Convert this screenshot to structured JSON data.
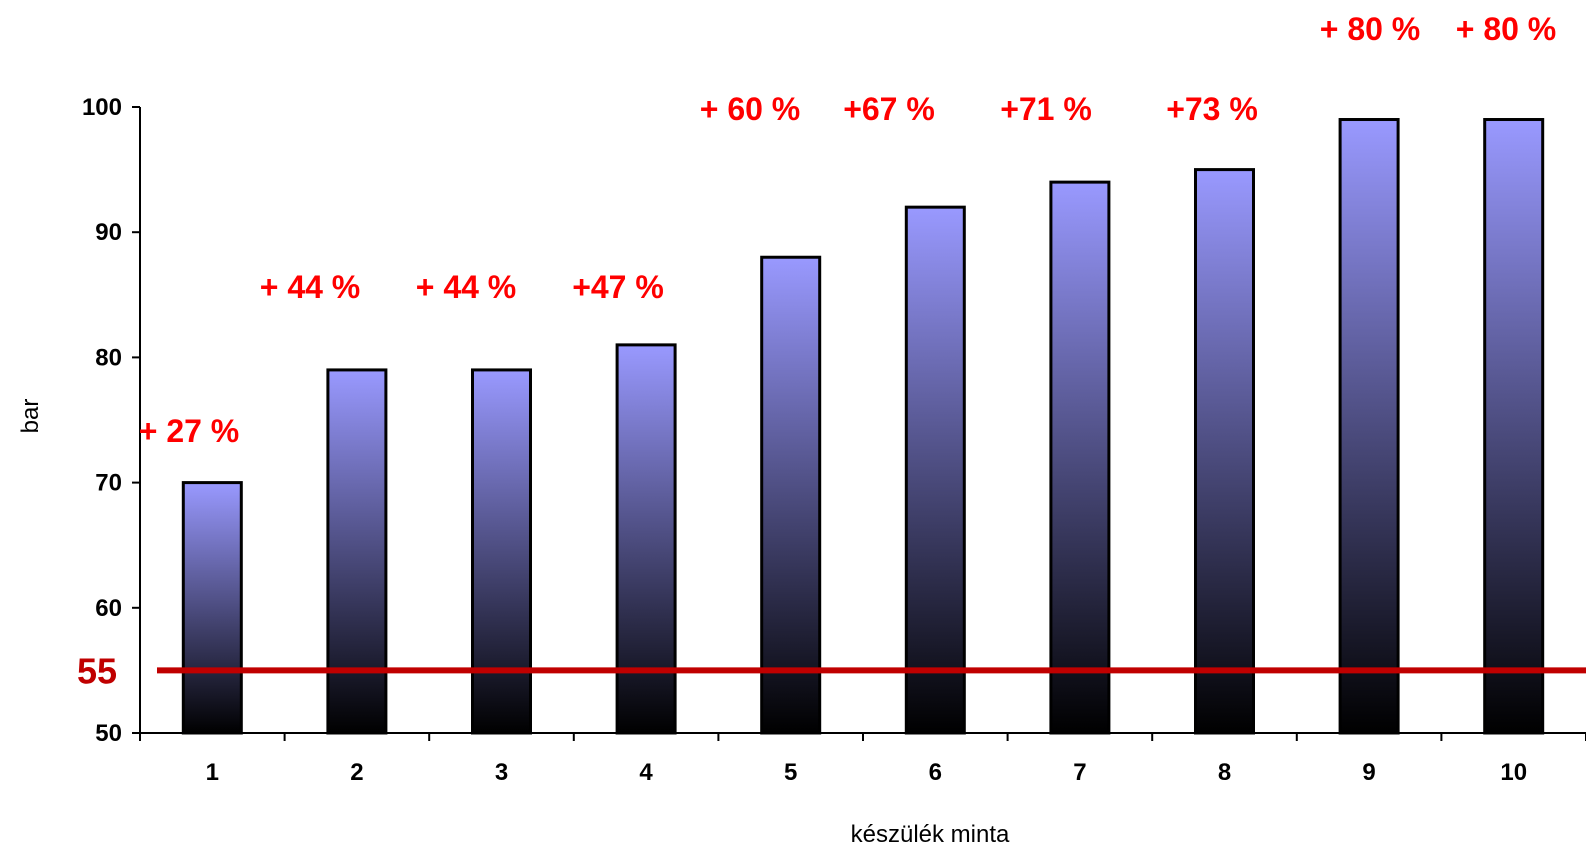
{
  "chart_data": {
    "type": "bar",
    "categories": [
      "1",
      "2",
      "3",
      "4",
      "5",
      "6",
      "7",
      "8",
      "9",
      "10"
    ],
    "values": [
      70,
      79,
      79,
      81,
      88,
      92,
      94,
      95,
      99,
      99
    ],
    "annotations": [
      "+ 27 %",
      "+ 44 %",
      "+ 44 %",
      "+47 %",
      "+ 60 %",
      "+67 %",
      "+71 %",
      "+73 %",
      "+ 80 %",
      "+ 80 %"
    ],
    "xlabel": "készülék minta",
    "ylabel": "bar",
    "ylim": [
      50,
      100
    ],
    "yticks": [
      50,
      60,
      70,
      80,
      90,
      100
    ],
    "reference_line": {
      "value": 55,
      "label": "55",
      "color": "#c00000"
    },
    "bar_gradient": {
      "top": "#9999ff",
      "bottom": "#000000"
    },
    "annotation_color": "#ff0000",
    "grid": false,
    "legend": "none"
  }
}
